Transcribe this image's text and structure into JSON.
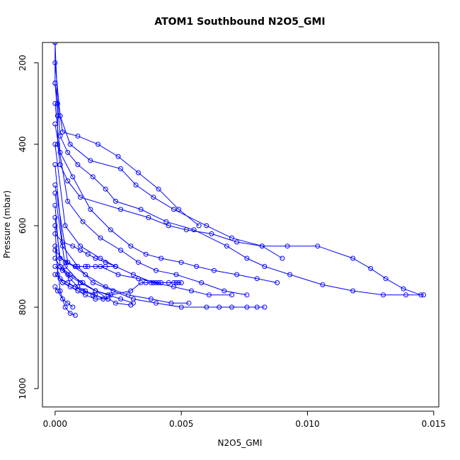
{
  "chart_data": {
    "type": "line",
    "title": "ATOM1 Southbound N2O5_GMI",
    "xlabel": "N2O5_GMI",
    "ylabel": "Pressure (mbar)",
    "xlim": [
      -0.0005,
      0.0152
    ],
    "ylim": [
      1045,
      150
    ],
    "y_reversed": true,
    "grid": false,
    "legend": "none",
    "x_ticks": [
      0.0,
      0.005,
      0.01,
      0.015
    ],
    "x_tick_labels": [
      "0.000",
      "0.005",
      "0.010",
      "0.015"
    ],
    "y_ticks": [
      200,
      400,
      600,
      800,
      1000
    ],
    "y_tick_labels": [
      "200",
      "400",
      "600",
      "800",
      "1000"
    ],
    "series_color": "#0000FF",
    "marker": "open-circle",
    "series": [
      {
        "x": [
          0.0,
          0.0,
          0.0001,
          0.0001,
          0.0002,
          0.0005,
          0.001,
          0.0026,
          0.0037,
          0.0045,
          0.0052,
          0.0062,
          0.0072,
          0.0082,
          0.0092,
          0.0104,
          0.0118,
          0.0125,
          0.0131,
          0.0138,
          0.0145
        ],
        "y": [
          150,
          250,
          330,
          400,
          450,
          490,
          530,
          560,
          580,
          600,
          610,
          620,
          640,
          650,
          650,
          650,
          680,
          705,
          730,
          755,
          770
        ]
      },
      {
        "x": [
          0.0,
          0.0001,
          0.0002,
          0.0005,
          0.0009,
          0.0015,
          0.002,
          0.0024,
          0.0034,
          0.0044,
          0.0055,
          0.0068,
          0.0076,
          0.0083,
          0.0093,
          0.0106,
          0.0118,
          0.013,
          0.0139,
          0.0146
        ],
        "y": [
          150,
          300,
          380,
          420,
          450,
          480,
          510,
          540,
          560,
          590,
          610,
          650,
          680,
          700,
          720,
          745,
          760,
          770,
          770,
          770
        ]
      },
      {
        "x": [
          0.0,
          0.0002,
          0.0006,
          0.0014,
          0.0026,
          0.0032,
          0.0039,
          0.0047,
          0.006,
          0.007,
          0.0082,
          0.009
        ],
        "y": [
          200,
          330,
          400,
          440,
          460,
          500,
          530,
          560,
          600,
          630,
          650,
          680
        ]
      },
      {
        "x": [
          0.0,
          0.0003,
          0.0009,
          0.0017,
          0.0025,
          0.0033,
          0.0041,
          0.0049,
          0.0057
        ],
        "y": [
          250,
          370,
          380,
          400,
          430,
          470,
          510,
          560,
          600
        ]
      },
      {
        "x": [
          0.0,
          0.0002,
          0.0007,
          0.0014,
          0.0022,
          0.003,
          0.0036,
          0.0042,
          0.005,
          0.0056,
          0.0063,
          0.0072,
          0.008,
          0.0088
        ],
        "y": [
          300,
          420,
          480,
          560,
          610,
          650,
          670,
          680,
          690,
          700,
          710,
          720,
          730,
          740
        ]
      },
      {
        "x": [
          0.0,
          0.0005,
          0.0011,
          0.0018,
          0.0026,
          0.0033,
          0.004,
          0.0048,
          0.0058,
          0.0067,
          0.0076
        ],
        "y": [
          350,
          540,
          590,
          630,
          660,
          690,
          710,
          720,
          740,
          760,
          770
        ]
      },
      {
        "x": [
          0.0,
          0.0004,
          0.001,
          0.0018,
          0.0024,
          0.0031,
          0.0039,
          0.0047,
          0.0054,
          0.0061,
          0.007
        ],
        "y": [
          400,
          600,
          650,
          680,
          700,
          720,
          740,
          750,
          760,
          770,
          770
        ]
      },
      {
        "x": [
          0.0,
          0.0003,
          0.0009,
          0.0015,
          0.0023,
          0.0031,
          0.004,
          0.005,
          0.006,
          0.0065,
          0.007,
          0.0076,
          0.008,
          0.0083
        ],
        "y": [
          450,
          650,
          700,
          740,
          760,
          780,
          790,
          800,
          800,
          800,
          800,
          800,
          800,
          800
        ]
      },
      {
        "x": [
          0.0,
          0.0005,
          0.0012,
          0.002,
          0.0029,
          0.0038,
          0.0046,
          0.0053
        ],
        "y": [
          500,
          690,
          720,
          750,
          770,
          780,
          790,
          790
        ]
      },
      {
        "x": [
          0.0,
          0.0004,
          0.001,
          0.0016,
          0.0022,
          0.003,
          0.0034,
          0.0036,
          0.0038,
          0.004,
          0.0042,
          0.0045,
          0.0048,
          0.0049
        ],
        "y": [
          520,
          700,
          740,
          760,
          770,
          760,
          740,
          740,
          740,
          740,
          740,
          740,
          740,
          740
        ]
      },
      {
        "x": [
          0.0,
          0.0002,
          0.0006,
          0.0011,
          0.0016,
          0.0021,
          0.0026,
          0.0031
        ],
        "y": [
          550,
          700,
          720,
          740,
          760,
          770,
          780,
          790
        ]
      },
      {
        "x": [
          0.0,
          0.0002,
          0.0005,
          0.0008,
          0.0012,
          0.0016,
          0.002,
          0.0024
        ],
        "y": [
          580,
          680,
          690,
          700,
          700,
          700,
          700,
          700
        ]
      },
      {
        "x": [
          0.0,
          0.0001,
          0.0003,
          0.0006,
          0.0009,
          0.0012,
          0.0016,
          0.0021
        ],
        "y": [
          600,
          720,
          740,
          750,
          760,
          770,
          780,
          780
        ]
      },
      {
        "x": [
          0.0,
          0.0003,
          0.0007,
          0.001,
          0.0013,
          0.0016,
          0.002,
          0.0024
        ],
        "y": [
          620,
          640,
          650,
          660,
          670,
          680,
          690,
          700
        ]
      },
      {
        "x": [
          0.0,
          0.0002,
          0.0004,
          0.0006,
          0.0008
        ],
        "y": [
          650,
          760,
          800,
          815,
          820
        ]
      },
      {
        "x": [
          0.0,
          0.0004,
          0.0008,
          0.0013,
          0.0018,
          0.0025,
          0.0033,
          0.0041,
          0.0047,
          0.005
        ],
        "y": [
          660,
          690,
          700,
          700,
          700,
          720,
          730,
          740,
          740,
          740
        ]
      },
      {
        "x": [
          0.0,
          0.0002,
          0.0005,
          0.001,
          0.0016,
          0.0024,
          0.003
        ],
        "y": [
          680,
          700,
          720,
          740,
          760,
          790,
          795
        ]
      },
      {
        "x": [
          0.0,
          0.0003,
          0.0006,
          0.0009,
          0.0012,
          0.0016,
          0.0019
        ],
        "y": [
          700,
          710,
          730,
          750,
          760,
          770,
          780
        ]
      },
      {
        "x": [
          0.0,
          0.0002,
          0.0005,
          0.0008,
          0.0011,
          0.0015,
          0.0021
        ],
        "y": [
          720,
          730,
          740,
          750,
          760,
          770,
          780
        ]
      },
      {
        "x": [
          0.0,
          0.0001,
          0.0003,
          0.0005,
          0.0007
        ],
        "y": [
          750,
          760,
          780,
          790,
          800
        ]
      }
    ]
  }
}
